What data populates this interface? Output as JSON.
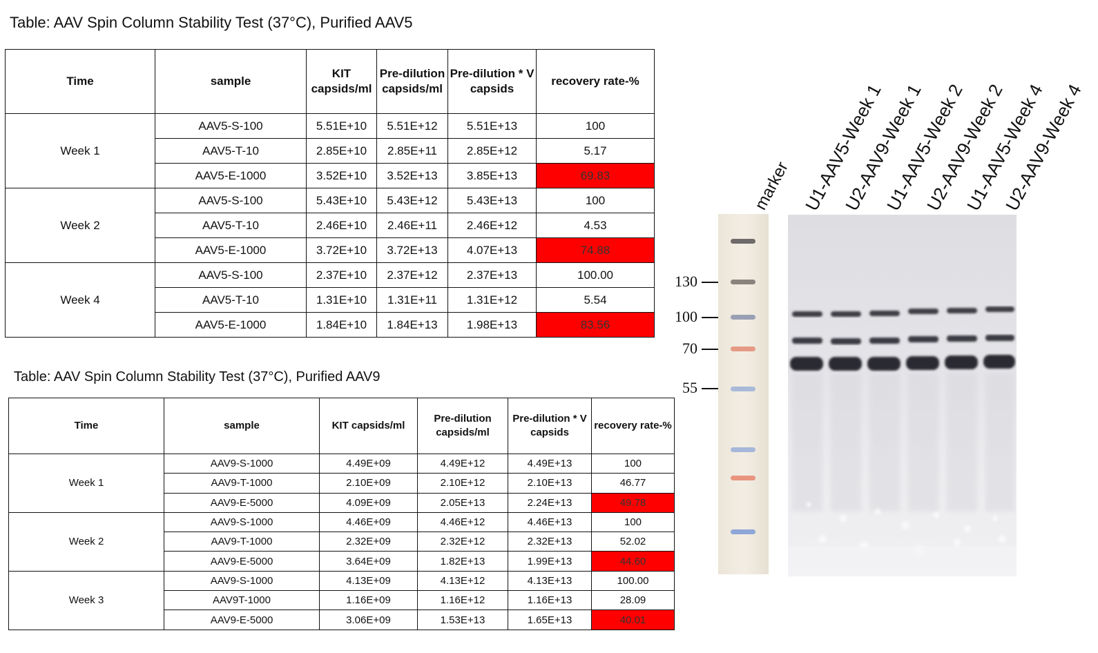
{
  "table_aav5": {
    "caption": "Table: AAV Spin Column Stability Test (37°C), Purified AAV5",
    "headers": {
      "time": "Time",
      "sample": "sample",
      "kit": "KIT capsids/ml",
      "predilution": "Pre-dilution capsids/ml",
      "predilution_v": "Pre-dilution * V capsids",
      "recovery": "recovery rate-%"
    },
    "groups": [
      {
        "time": "Week 1",
        "rows": [
          {
            "sample": "AAV5-S-100",
            "kit": "5.51E+10",
            "pre": "5.51E+12",
            "prev": "5.51E+13",
            "rec": "100",
            "highlight": false
          },
          {
            "sample": "AAV5-T-10",
            "kit": "2.85E+10",
            "pre": "2.85E+11",
            "prev": "2.85E+12",
            "rec": "5.17",
            "highlight": false
          },
          {
            "sample": "AAV5-E-1000",
            "kit": "3.52E+10",
            "pre": "3.52E+13",
            "prev": "3.85E+13",
            "rec": "69.83",
            "highlight": true
          }
        ]
      },
      {
        "time": "Week 2",
        "rows": [
          {
            "sample": "AAV5-S-100",
            "kit": "5.43E+10",
            "pre": "5.43E+12",
            "prev": "5.43E+13",
            "rec": "100",
            "highlight": false
          },
          {
            "sample": "AAV5-T-10",
            "kit": "2.46E+10",
            "pre": "2.46E+11",
            "prev": "2.46E+12",
            "rec": "4.53",
            "highlight": false
          },
          {
            "sample": "AAV5-E-1000",
            "kit": "3.72E+10",
            "pre": "3.72E+13",
            "prev": "4.07E+13",
            "rec": "74.88",
            "highlight": true
          }
        ]
      },
      {
        "time": "Week 4",
        "rows": [
          {
            "sample": "AAV5-S-100",
            "kit": "2.37E+10",
            "pre": "2.37E+12",
            "prev": "2.37E+13",
            "rec": "100.00",
            "highlight": false
          },
          {
            "sample": "AAV5-T-10",
            "kit": "1.31E+10",
            "pre": "1.31E+11",
            "prev": "1.31E+12",
            "rec": "5.54",
            "highlight": false
          },
          {
            "sample": "AAV5-E-1000",
            "kit": "1.84E+10",
            "pre": "1.84E+13",
            "prev": "1.98E+13",
            "rec": "83.56",
            "highlight": true
          }
        ]
      }
    ]
  },
  "table_aav9": {
    "caption": "Table: AAV Spin Column Stability Test (37°C), Purified AAV9",
    "headers": {
      "time": "Time",
      "sample": "sample",
      "kit": "KIT capsids/ml",
      "predilution": "Pre-dilution capsids/ml",
      "predilution_v": "Pre-dilution * V capsids",
      "recovery": "recovery rate-%"
    },
    "groups": [
      {
        "time": "Week 1",
        "rows": [
          {
            "sample": "AAV9-S-1000",
            "kit": "4.49E+09",
            "pre": "4.49E+12",
            "prev": "4.49E+13",
            "rec": "100",
            "highlight": false
          },
          {
            "sample": "AAV9-T-1000",
            "kit": "2.10E+09",
            "pre": "2.10E+12",
            "prev": "2.10E+13",
            "rec": "46.77",
            "highlight": false
          },
          {
            "sample": "AAV9-E-5000",
            "kit": "4.09E+09",
            "pre": "2.05E+13",
            "prev": "2.24E+13",
            "rec": "49.78",
            "highlight": true
          }
        ]
      },
      {
        "time": "Week 2",
        "rows": [
          {
            "sample": "AAV9-S-1000",
            "kit": "4.46E+09",
            "pre": "4.46E+12",
            "prev": "4.46E+13",
            "rec": "100",
            "highlight": false
          },
          {
            "sample": "AAV9-T-1000",
            "kit": "2.32E+09",
            "pre": "2.32E+12",
            "prev": "2.32E+13",
            "rec": "52.02",
            "highlight": false
          },
          {
            "sample": "AAV9-E-5000",
            "kit": "3.64E+09",
            "pre": "1.82E+13",
            "prev": "1.99E+13",
            "rec": "44.60",
            "highlight": true
          }
        ]
      },
      {
        "time": "Week 3",
        "rows": [
          {
            "sample": "AAV9-S-1000",
            "kit": "4.13E+09",
            "pre": "4.13E+12",
            "prev": "4.13E+13",
            "rec": "100.00",
            "highlight": false
          },
          {
            "sample": "AAV9T-1000",
            "kit": "1.16E+09",
            "pre": "1.16E+12",
            "prev": "1.16E+13",
            "rec": "28.09",
            "highlight": false
          },
          {
            "sample": "AAV9-E-5000",
            "kit": "3.06E+09",
            "pre": "1.53E+13",
            "prev": "1.65E+13",
            "rec": "40.01",
            "highlight": true
          }
        ]
      }
    ]
  },
  "gel": {
    "marker_label": "marker",
    "lane_labels": [
      "U1-AAV5-Week 1",
      "U2-AAV9-Week 1",
      "U1-AAV5-Week 2",
      "U2-AAV9-Week 2",
      "U1-AAV5-Week 4",
      "U2-AAV9-Week 4"
    ],
    "mw_markers": [
      "130",
      "100",
      "70",
      "55"
    ],
    "highlight_color": "#ff0000"
  }
}
